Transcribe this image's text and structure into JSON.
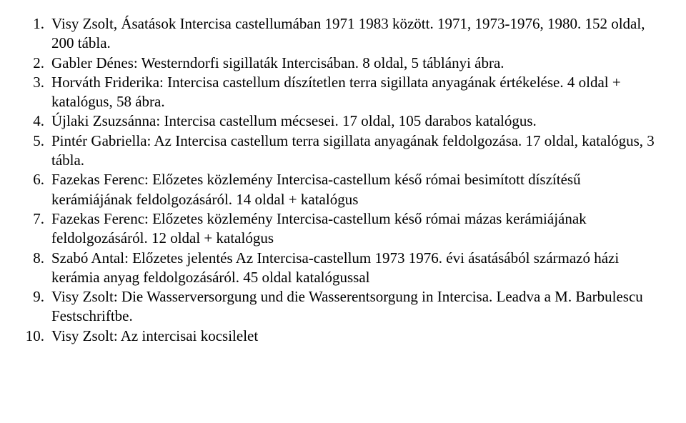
{
  "items": [
    "Visy Zsolt, Ásatások Intercisa castellumában 1971 1983 között. 1971, 1973-1976, 1980. 152 oldal, 200 tábla.",
    "Gabler Dénes: Westerndorfi sigillaták Intercisában. 8 oldal, 5 táblányi ábra.",
    "Horváth Friderika: Intercisa castellum díszítetlen terra sigillata anyagának értékelése. 4 oldal + katalógus, 58 ábra.",
    "Újlaki Zsuzsánna: Intercisa castellum mécsesei. 17 oldal, 105 darabos katalógus.",
    "Pintér Gabriella: Az Intercisa castellum terra sigillata anyagának feldolgozása. 17 oldal, katalógus, 3 tábla.",
    "Fazekas Ferenc: Előzetes közlemény Intercisa-castellum késő római besimított díszítésű kerámiájának feldolgozásáról. 14 oldal + katalógus",
    "Fazekas Ferenc: Előzetes közlemény Intercisa-castellum késő római mázas kerámiájának feldolgozásáról. 12 oldal + katalógus",
    "Szabó Antal: Előzetes jelentés Az Intercisa-castellum 1973 1976. évi ásatásából származó házi kerámia anyag feldolgozásáról. 45 oldal katalógussal",
    "Visy Zsolt: Die Wasserversorgung und die Wasserentsorgung in Intercisa. Leadva a M. Barbulescu Festschriftbe.",
    "Visy Zsolt: Az intercisai kocsilelet"
  ]
}
